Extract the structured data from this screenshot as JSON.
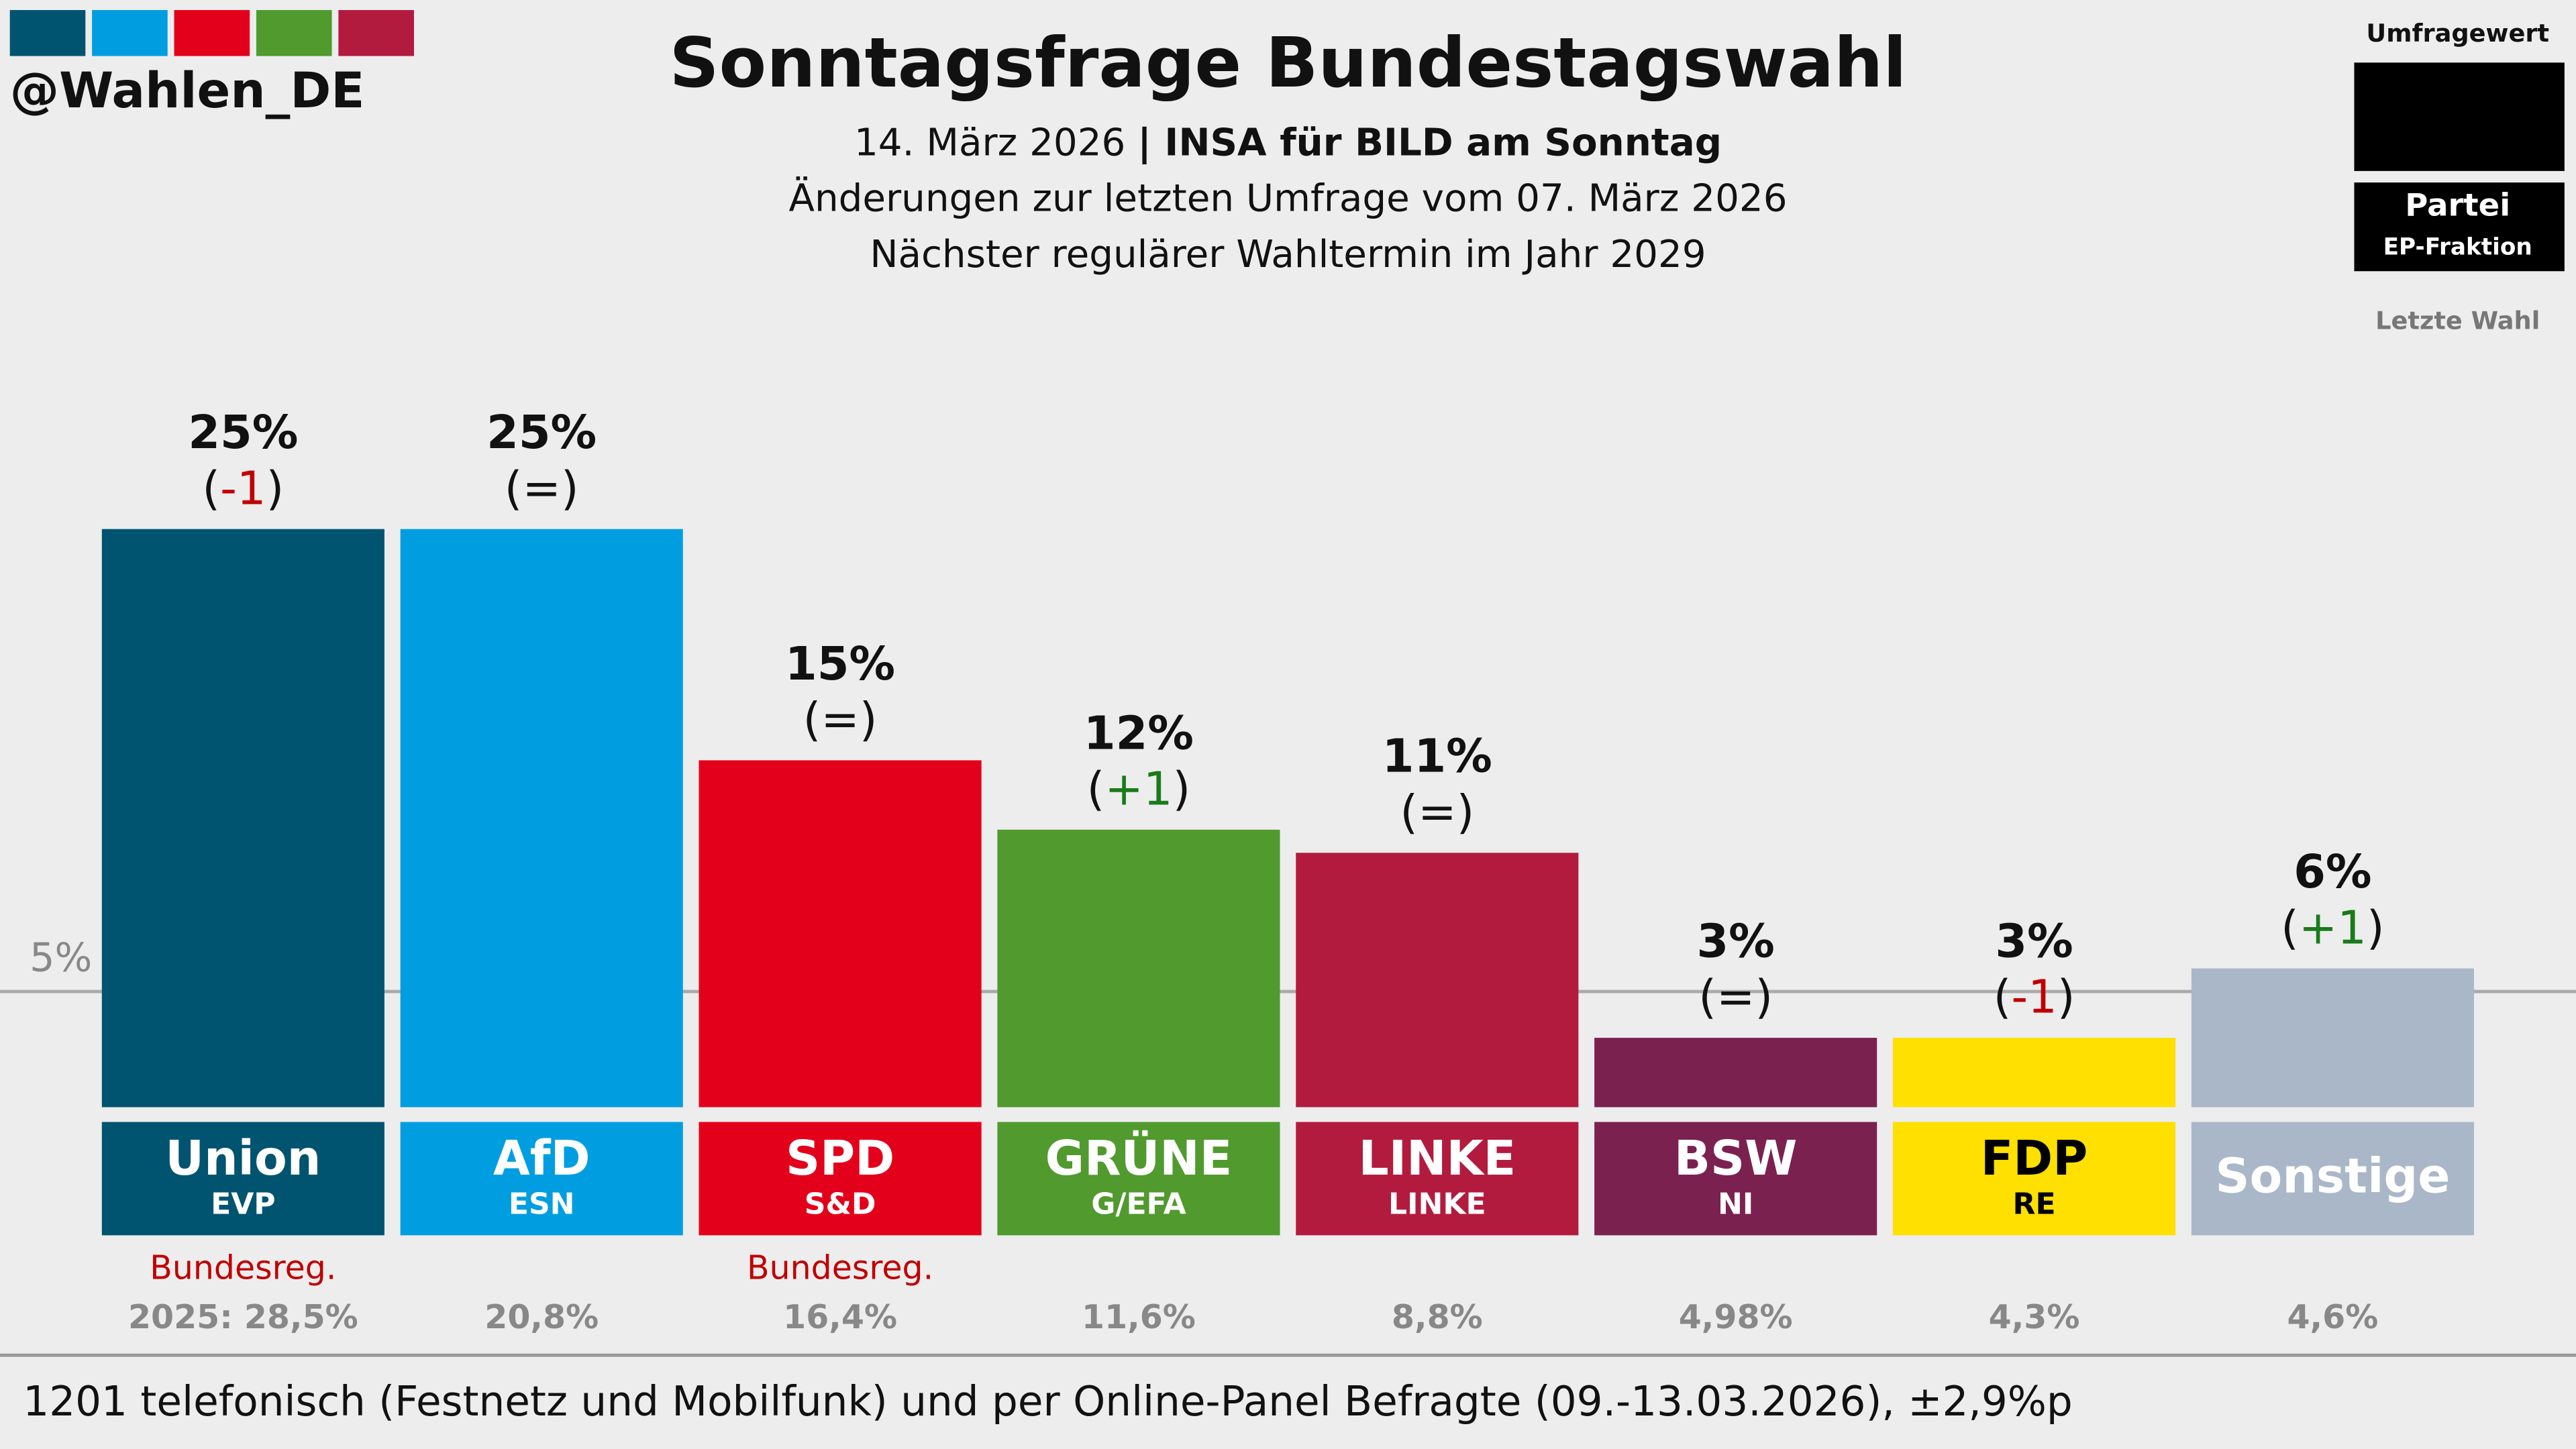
{
  "handle": "@Wahlen_DE",
  "legend": {
    "poll_value": "Umfragewert",
    "party": "Partei",
    "ep_group": "EP-Fraktion",
    "last_election": "Letzte Wahl"
  },
  "chart_data": {
    "type": "bar",
    "title": "Sonntagsfrage Bundestagswahl",
    "date": "14. März 2026",
    "source": "| INSA für BILD am Sonntag",
    "subtitle_1": "Änderungen zur letzten Umfrage vom 07. März 2026",
    "subtitle_2": "Nächster regulärer Wahltermin im Jahr 2029",
    "categories": [
      "Union",
      "AfD",
      "SPD",
      "GRÜNE",
      "LINKE",
      "BSW",
      "FDP",
      "Sonstige"
    ],
    "ep_groups": [
      "EVP",
      "ESN",
      "S&D",
      "G/EFA",
      "LINKE",
      "NI",
      "RE",
      null
    ],
    "values": [
      25,
      25,
      15,
      12,
      11,
      3,
      3,
      6
    ],
    "value_labels": [
      "25%",
      "25%",
      "15%",
      "12%",
      "11%",
      "3%",
      "3%",
      "6%"
    ],
    "changes": [
      "(-1)",
      "(=)",
      "(=)",
      "(+1)",
      "(=)",
      "(=)",
      "(-1)",
      "(+1)"
    ],
    "government": [
      "Bundesreg.",
      null,
      "Bundesreg.",
      null,
      null,
      null,
      null,
      null
    ],
    "last_election": [
      "2025: 28,5%",
      "20,8%",
      "16,4%",
      "11,6%",
      "8,8%",
      "4,98%",
      "4,3%",
      "4,6%"
    ],
    "colors": [
      "#00546f",
      "#009ee0",
      "#e3001b",
      "#509a2e",
      "#b31b3e",
      "#7b2150",
      "#ffe000",
      "#aab7c8"
    ],
    "label_colors": [
      "#ffffff",
      "#ffffff",
      "#ffffff",
      "#ffffff",
      "#ffffff",
      "#ffffff",
      "#000000",
      "#ffffff"
    ],
    "ylim": [
      0,
      25
    ],
    "yticks": [
      {
        "value": 5,
        "label": "5%"
      }
    ],
    "grid": true,
    "note": "1201 telefonisch (Festnetz und Mobilfunk) und per Online-Panel Befragte (09.-13.03.2026), ±2,9%p"
  }
}
